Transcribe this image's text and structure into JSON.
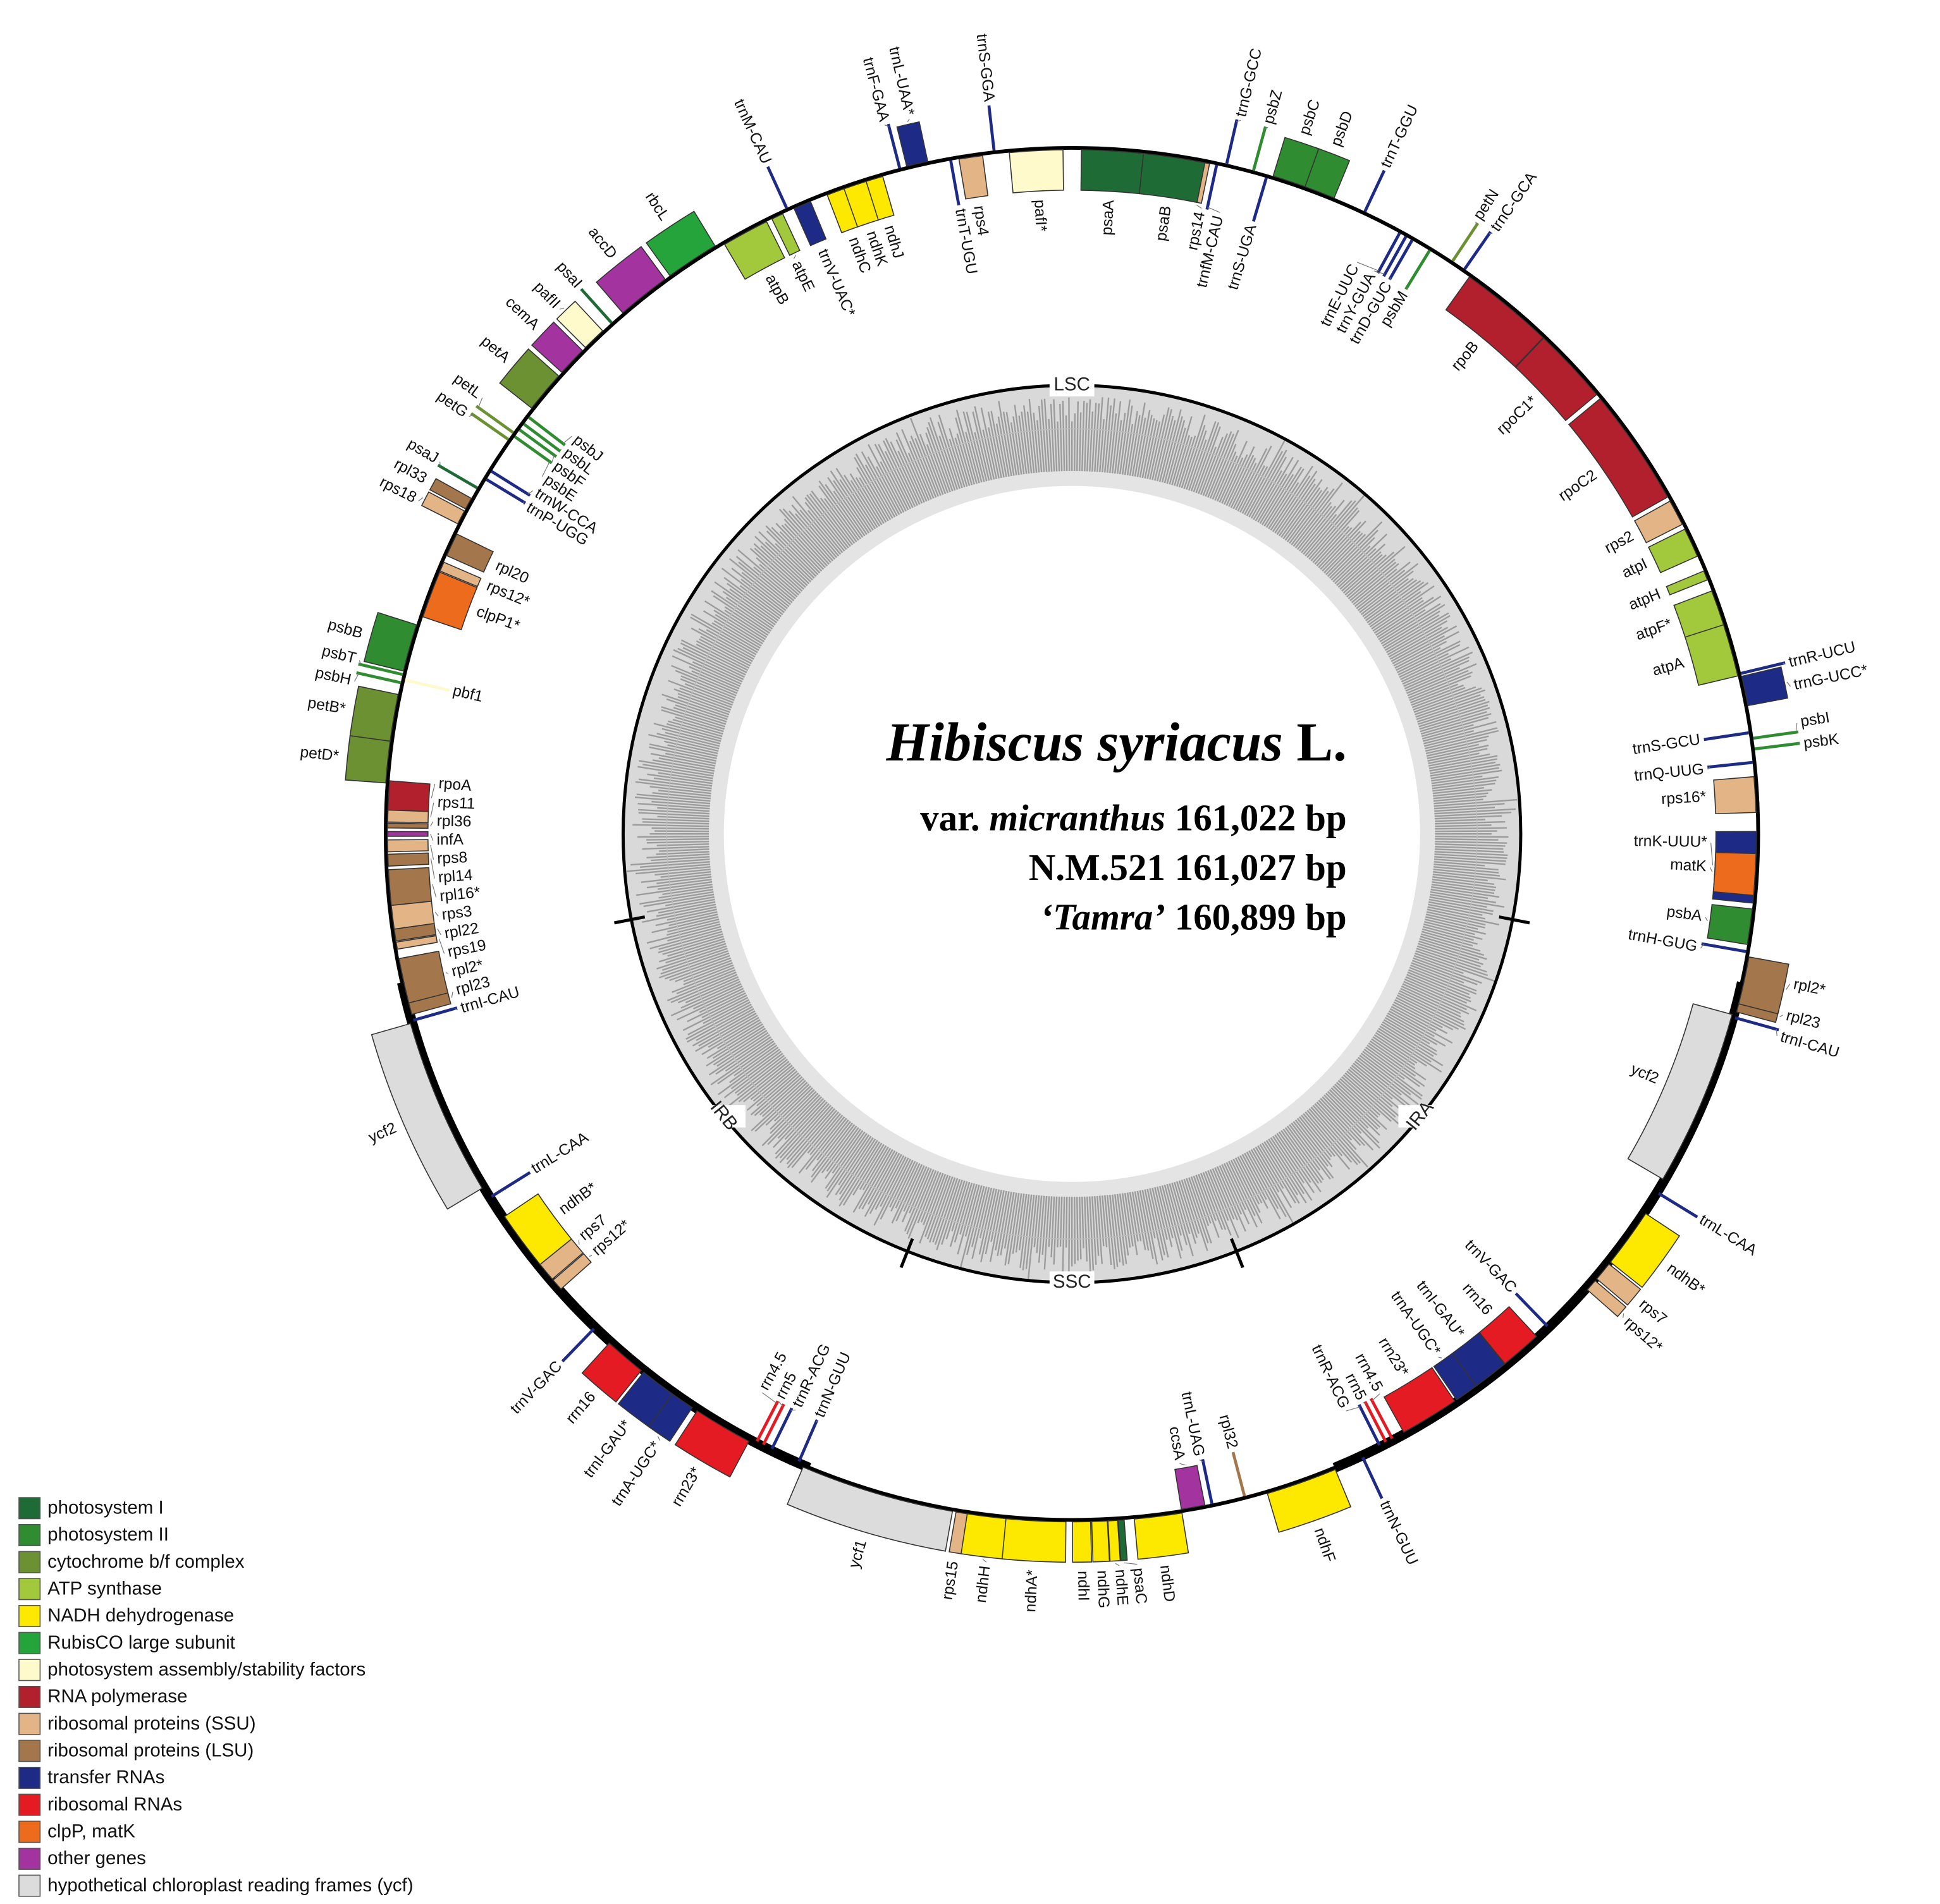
{
  "title": [
    "Hibiscus syriacus",
    " L."
  ],
  "lines": [
    [
      "var. ",
      "micranthus",
      " 161,022 bp"
    ],
    [
      "N.M.521 161,027 bp"
    ],
    [
      "‘Tamra’",
      " 160,899 bp"
    ]
  ],
  "regions": [
    "LSC",
    "IRA",
    "SSC",
    "IRB"
  ],
  "genes": [
    {
      "label": "trnM-CAU",
      "color": "#1d2b86"
    },
    {
      "label": "trnV-UAC*",
      "color": "#1d2b86"
    },
    {
      "label": "atpE",
      "color": "#a2c83c"
    },
    {
      "label": "atpB",
      "color": "#a2c83c"
    },
    {
      "label": "rbcL",
      "color": "#26a43c"
    },
    {
      "label": "accD",
      "color": "#a3339e"
    },
    {
      "label": "psaI",
      "color": "#1f6b35"
    },
    {
      "label": "pafII",
      "color": "#fffacb"
    },
    {
      "label": "cemA",
      "color": "#a3339e"
    },
    {
      "label": "petA",
      "color": "#6b9133"
    },
    {
      "label": "petL",
      "color": "#6b9133"
    },
    {
      "label": "petG",
      "color": "#6b9133"
    },
    {
      "label": "psbJ",
      "color": "#2f8c31"
    },
    {
      "label": "psbL",
      "color": "#2f8c31"
    },
    {
      "label": "psbF",
      "color": "#2f8c31"
    },
    {
      "label": "psbE",
      "color": "#2f8c31"
    },
    {
      "label": "trnW-CCA",
      "color": "#1d2b86"
    },
    {
      "label": "trnP-UGG",
      "color": "#1d2b86"
    },
    {
      "label": "psaJ",
      "color": "#1f6b35"
    },
    {
      "label": "rpl33",
      "color": "#a3774b"
    },
    {
      "label": "rps18",
      "color": "#e2b486"
    },
    {
      "label": "rpl20",
      "color": "#a3774b"
    },
    {
      "label": "rps12*",
      "color": "#e2b486"
    },
    {
      "label": "clpP1*",
      "color": "#ec6b1d"
    },
    {
      "label": "psbB",
      "color": "#2f8c31"
    },
    {
      "label": "psbT",
      "color": "#2f8c31"
    },
    {
      "label": "psbH",
      "color": "#2f8c31"
    },
    {
      "label": "pbf1",
      "color": "#fffacb"
    },
    {
      "label": "petB*",
      "color": "#6b9133"
    },
    {
      "label": "petD*",
      "color": "#6b9133"
    },
    {
      "label": "rpoA",
      "color": "#b21f2d"
    },
    {
      "label": "rps11",
      "color": "#e2b486"
    },
    {
      "label": "rpl36",
      "color": "#a3774b"
    },
    {
      "label": "infA",
      "color": "#a3339e"
    },
    {
      "label": "rps8",
      "color": "#e2b486"
    },
    {
      "label": "rpl14",
      "color": "#a3774b"
    },
    {
      "label": "rpl16*",
      "color": "#a3774b"
    },
    {
      "label": "rps3",
      "color": "#e2b486"
    },
    {
      "label": "rpl22",
      "color": "#a3774b"
    },
    {
      "label": "rps19",
      "color": "#e2b486"
    },
    {
      "label": "rpl2*",
      "color": "#a3774b"
    },
    {
      "label": "rpl23",
      "color": "#a3774b"
    },
    {
      "label": "trnI-CAU",
      "color": "#1d2b86"
    },
    {
      "label": "ycf2",
      "color": "#dcdcdc"
    },
    {
      "label": "trnL-CAA",
      "color": "#1d2b86"
    },
    {
      "label": "ndhB*",
      "color": "#fde800"
    },
    {
      "label": "rps7",
      "color": "#e2b486"
    },
    {
      "label": "rps12*",
      "color": "#e2b486"
    },
    {
      "label": "trnV-GAC",
      "color": "#1d2b86"
    },
    {
      "label": "rrn16",
      "color": "#e41b23"
    },
    {
      "label": "trnI-GAU*",
      "color": "#1d2b86"
    },
    {
      "label": "trnA-UGC*",
      "color": "#1d2b86"
    },
    {
      "label": "rrn23*",
      "color": "#e41b23"
    },
    {
      "label": "rrn4.5",
      "color": "#e41b23"
    },
    {
      "label": "rrn5",
      "color": "#e41b23"
    },
    {
      "label": "trnR-ACG",
      "color": "#1d2b86"
    },
    {
      "label": "trnN-GUU",
      "color": "#1d2b86"
    },
    {
      "label": "ycf1",
      "color": "#dcdcdc"
    },
    {
      "label": "rps15",
      "color": "#e2b486"
    },
    {
      "label": "ndhH",
      "color": "#fde800"
    },
    {
      "label": "ndhA*",
      "color": "#fde800"
    },
    {
      "label": "ndhI",
      "color": "#fde800"
    },
    {
      "label": "ndhG",
      "color": "#fde800"
    },
    {
      "label": "ndhE",
      "color": "#fde800"
    },
    {
      "label": "psaC",
      "color": "#1f6b35"
    },
    {
      "label": "ndhD",
      "color": "#fde800"
    },
    {
      "label": "ccsA",
      "color": "#a3339e"
    },
    {
      "label": "trnL-UAG",
      "color": "#1d2b86"
    },
    {
      "label": "rpl32",
      "color": "#a3774b"
    },
    {
      "label": "ndhF",
      "color": "#fde800"
    },
    {
      "label": "trnN-GUU",
      "color": "#1d2b86"
    },
    {
      "label": "trnR-ACG",
      "color": "#1d2b86"
    },
    {
      "label": "rrn5",
      "color": "#e41b23"
    },
    {
      "label": "rrn4.5",
      "color": "#e41b23"
    },
    {
      "label": "rrn23*",
      "color": "#e41b23"
    },
    {
      "label": "trnA-UGC*",
      "color": "#1d2b86"
    },
    {
      "label": "trnI-GAU*",
      "color": "#1d2b86"
    },
    {
      "label": "rrn16",
      "color": "#e41b23"
    },
    {
      "label": "trnV-GAC",
      "color": "#1d2b86"
    },
    {
      "label": "rps12*",
      "color": "#e2b486"
    },
    {
      "label": "rps7",
      "color": "#e2b486"
    },
    {
      "label": "ndhB*",
      "color": "#fde800"
    },
    {
      "label": "trnL-CAA",
      "color": "#1d2b86"
    },
    {
      "label": "ycf2",
      "color": "#dcdcdc"
    },
    {
      "label": "trnI-CAU",
      "color": "#1d2b86"
    },
    {
      "label": "rpl23",
      "color": "#a3774b"
    },
    {
      "label": "rpl2*",
      "color": "#a3774b"
    },
    {
      "label": "trnH-GUG",
      "color": "#1d2b86"
    },
    {
      "label": "psbA",
      "color": "#2f8c31"
    },
    {
      "label": "trnK-UUU*",
      "color": "#1d2b86"
    },
    {
      "label": "matK",
      "color": "#ec6b1d"
    },
    {
      "label": "rps16*",
      "color": "#e2b486"
    },
    {
      "label": "trnQ-UUG",
      "color": "#1d2b86"
    },
    {
      "label": "trnS-GCU",
      "color": "#1d2b86"
    },
    {
      "label": "psbI",
      "color": "#2f8c31"
    },
    {
      "label": "psbK",
      "color": "#2f8c31"
    },
    {
      "label": "trnG-UCC*",
      "color": "#1d2b86"
    },
    {
      "label": "trnR-UCU",
      "color": "#1d2b86"
    },
    {
      "label": "atpA",
      "color": "#a2c83c"
    },
    {
      "label": "atpF*",
      "color": "#a2c83c"
    },
    {
      "label": "atpH",
      "color": "#a2c83c"
    },
    {
      "label": "atpI",
      "color": "#a2c83c"
    },
    {
      "label": "rps2",
      "color": "#e2b486"
    },
    {
      "label": "rpoC2",
      "color": "#b21f2d"
    },
    {
      "label": "rpoC1*",
      "color": "#b21f2d"
    },
    {
      "label": "rpoB",
      "color": "#b21f2d"
    },
    {
      "label": "trnC-GCA",
      "color": "#1d2b86"
    },
    {
      "label": "petN",
      "color": "#6b9133"
    },
    {
      "label": "psbM",
      "color": "#2f8c31"
    },
    {
      "label": "trnD-GUC",
      "color": "#1d2b86"
    },
    {
      "label": "trnY-GUA",
      "color": "#1d2b86"
    },
    {
      "label": "trnE-UUC",
      "color": "#1d2b86"
    },
    {
      "label": "trnT-GGU",
      "color": "#1d2b86"
    },
    {
      "label": "psbD",
      "color": "#2f8c31"
    },
    {
      "label": "psbC",
      "color": "#2f8c31"
    },
    {
      "label": "psbZ",
      "color": "#2f8c31"
    },
    {
      "label": "trnG-GCC",
      "color": "#1d2b86"
    },
    {
      "label": "trnS-UGA",
      "color": "#1d2b86"
    },
    {
      "label": "trnfM-CAU",
      "color": "#1d2b86"
    },
    {
      "label": "rps14",
      "color": "#e2b486"
    },
    {
      "label": "psaB",
      "color": "#1f6b35"
    },
    {
      "label": "psaA",
      "color": "#1f6b35"
    },
    {
      "label": "pafI*",
      "color": "#fffacb"
    },
    {
      "label": "trnS-GGA",
      "color": "#1d2b86"
    },
    {
      "label": "rps4",
      "color": "#e2b486"
    },
    {
      "label": "trnT-UGU",
      "color": "#1d2b86"
    },
    {
      "label": "trnL-UAA*",
      "color": "#1d2b86"
    },
    {
      "label": "trnF-GAA",
      "color": "#1d2b86"
    },
    {
      "label": "ndhJ",
      "color": "#fde800"
    },
    {
      "label": "ndhK",
      "color": "#fde800"
    },
    {
      "label": "ndhC",
      "color": "#fde800"
    }
  ],
  "legend": [
    {
      "label": "photosystem I",
      "color": "#1f6b35"
    },
    {
      "label": "photosystem II",
      "color": "#2f8c31"
    },
    {
      "label": "cytochrome b/f complex",
      "color": "#6b9133"
    },
    {
      "label": "ATP synthase",
      "color": "#a2c83c"
    },
    {
      "label": "NADH dehydrogenase",
      "color": "#fde800"
    },
    {
      "label": "RubisCO large subunit",
      "color": "#26a43c"
    },
    {
      "label": "photosystem assembly/stability factors",
      "color": "#fffacb"
    },
    {
      "label": "RNA polymerase",
      "color": "#b21f2d"
    },
    {
      "label": "ribosomal proteins (SSU)",
      "color": "#e2b486"
    },
    {
      "label": "ribosomal proteins (LSU)",
      "color": "#a3774b"
    },
    {
      "label": "transfer RNAs",
      "color": "#1d2b86"
    },
    {
      "label": "ribosomal RNAs",
      "color": "#e41b23"
    },
    {
      "label": "clpP, matK",
      "color": "#ec6b1d"
    },
    {
      "label": "other genes",
      "color": "#a3339e"
    },
    {
      "label": "hypothetical chloroplast reading frames (ycf)",
      "color": "#dcdcdc"
    }
  ]
}
